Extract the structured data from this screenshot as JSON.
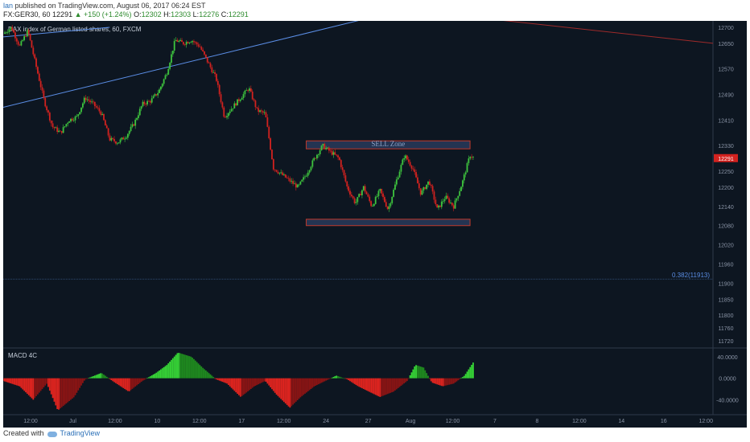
{
  "header": {
    "user": "lan",
    "published": "published on TradingView.com, August 06, 2017 06:24 EST",
    "symbol": "FX:GER30, 60",
    "last": "12291",
    "change": "▲ +150 (+1.24%)",
    "o_label": "O:",
    "o": "12302",
    "h_label": "H:",
    "h": "12303",
    "l_label": "L:",
    "l": "12276",
    "c_label": "C:",
    "c": "12291"
  },
  "footer": {
    "created": "Created with",
    "brand": "TradingView"
  },
  "colors": {
    "background": "#0d1621",
    "up": "#3ec43e",
    "down": "#d2221f",
    "trendline": "#5b8ee6",
    "trend_red": "#9e2a2a",
    "zone_fill": "#2c3f63",
    "zone_border": "#c0392b"
  },
  "chart_data": {
    "type": "candlestick",
    "title": "DAX index of German listed shares, 60, FXCM",
    "price_axis": [
      "12700",
      "12650",
      "12570",
      "12490",
      "12410",
      "12330",
      "12250",
      "12200",
      "12140",
      "12080",
      "12020",
      "11960",
      "11900",
      "11850",
      "11800",
      "11760",
      "11720"
    ],
    "price_range": [
      11700,
      12720
    ],
    "time_labels": [
      "12:00",
      "Jul",
      "12:00",
      "10",
      "12:00",
      "17",
      "12:00",
      "24",
      "27",
      "Aug",
      "12:00",
      "7",
      "8",
      "12:00",
      "14",
      "16",
      "12:00"
    ],
    "last_price_label": "12291",
    "annotations": {
      "sell_zone": {
        "label": "SELL Zone",
        "top": 12345,
        "bottom": 12320
      },
      "buy_zone": {
        "top": 12100,
        "bottom": 12080
      },
      "fib": {
        "label": "0.382(11913)",
        "value": 11913
      }
    },
    "price_path": [
      [
        0,
        12680
      ],
      [
        0.3,
        12700
      ],
      [
        0.6,
        12640
      ],
      [
        0.9,
        12690
      ],
      [
        1.2,
        12580
      ],
      [
        1.5,
        12470
      ],
      [
        1.8,
        12390
      ],
      [
        2.1,
        12370
      ],
      [
        2.4,
        12410
      ],
      [
        2.7,
        12420
      ],
      [
        3.0,
        12480
      ],
      [
        3.3,
        12460
      ],
      [
        3.6,
        12430
      ],
      [
        3.9,
        12350
      ],
      [
        4.2,
        12340
      ],
      [
        4.5,
        12360
      ],
      [
        4.8,
        12400
      ],
      [
        5.1,
        12460
      ],
      [
        5.4,
        12470
      ],
      [
        5.7,
        12500
      ],
      [
        6.0,
        12560
      ],
      [
        6.3,
        12660
      ],
      [
        6.6,
        12650
      ],
      [
        6.9,
        12660
      ],
      [
        7.2,
        12640
      ],
      [
        7.5,
        12590
      ],
      [
        7.8,
        12540
      ],
      [
        8.1,
        12420
      ],
      [
        8.4,
        12450
      ],
      [
        8.7,
        12480
      ],
      [
        9.0,
        12510
      ],
      [
        9.3,
        12440
      ],
      [
        9.6,
        12430
      ],
      [
        9.9,
        12260
      ],
      [
        10.2,
        12240
      ],
      [
        10.5,
        12220
      ],
      [
        10.8,
        12200
      ],
      [
        11.1,
        12240
      ],
      [
        11.4,
        12290
      ],
      [
        11.7,
        12330
      ],
      [
        12.0,
        12310
      ],
      [
        12.3,
        12290
      ],
      [
        12.6,
        12200
      ],
      [
        12.9,
        12150
      ],
      [
        13.2,
        12200
      ],
      [
        13.5,
        12140
      ],
      [
        13.8,
        12190
      ],
      [
        14.1,
        12130
      ],
      [
        14.4,
        12220
      ],
      [
        14.7,
        12300
      ],
      [
        15.0,
        12260
      ],
      [
        15.3,
        12180
      ],
      [
        15.6,
        12220
      ],
      [
        15.9,
        12130
      ],
      [
        16.2,
        12170
      ],
      [
        16.5,
        12140
      ],
      [
        16.8,
        12210
      ],
      [
        17.1,
        12300
      ],
      [
        17.25,
        12291
      ]
    ],
    "macd": {
      "label": "MACD 4C",
      "axis": [
        "40.0000",
        "0.0000",
        "-40.0000"
      ],
      "range": [
        -65,
        55
      ],
      "path": [
        [
          0,
          -5
        ],
        [
          0.6,
          -15
        ],
        [
          1.1,
          -40
        ],
        [
          1.6,
          -10
        ],
        [
          2.0,
          -60
        ],
        [
          2.6,
          -35
        ],
        [
          3.0,
          -2
        ],
        [
          3.6,
          10
        ],
        [
          4.0,
          -5
        ],
        [
          4.6,
          -25
        ],
        [
          5.1,
          -5
        ],
        [
          5.6,
          10
        ],
        [
          6.0,
          25
        ],
        [
          6.4,
          48
        ],
        [
          6.9,
          40
        ],
        [
          7.3,
          20
        ],
        [
          7.8,
          -2
        ],
        [
          8.2,
          -10
        ],
        [
          8.7,
          -35
        ],
        [
          9.2,
          -15
        ],
        [
          9.6,
          -5
        ],
        [
          10.0,
          -30
        ],
        [
          10.5,
          -55
        ],
        [
          10.9,
          -35
        ],
        [
          11.4,
          -15
        ],
        [
          11.8,
          -5
        ],
        [
          12.2,
          5
        ],
        [
          12.6,
          -2
        ],
        [
          13.0,
          -15
        ],
        [
          13.4,
          -25
        ],
        [
          13.8,
          -35
        ],
        [
          14.3,
          -25
        ],
        [
          14.8,
          -5
        ],
        [
          15.1,
          25
        ],
        [
          15.4,
          20
        ],
        [
          15.7,
          -8
        ],
        [
          16.1,
          -15
        ],
        [
          16.5,
          -10
        ],
        [
          16.9,
          5
        ],
        [
          17.25,
          32
        ]
      ]
    }
  }
}
